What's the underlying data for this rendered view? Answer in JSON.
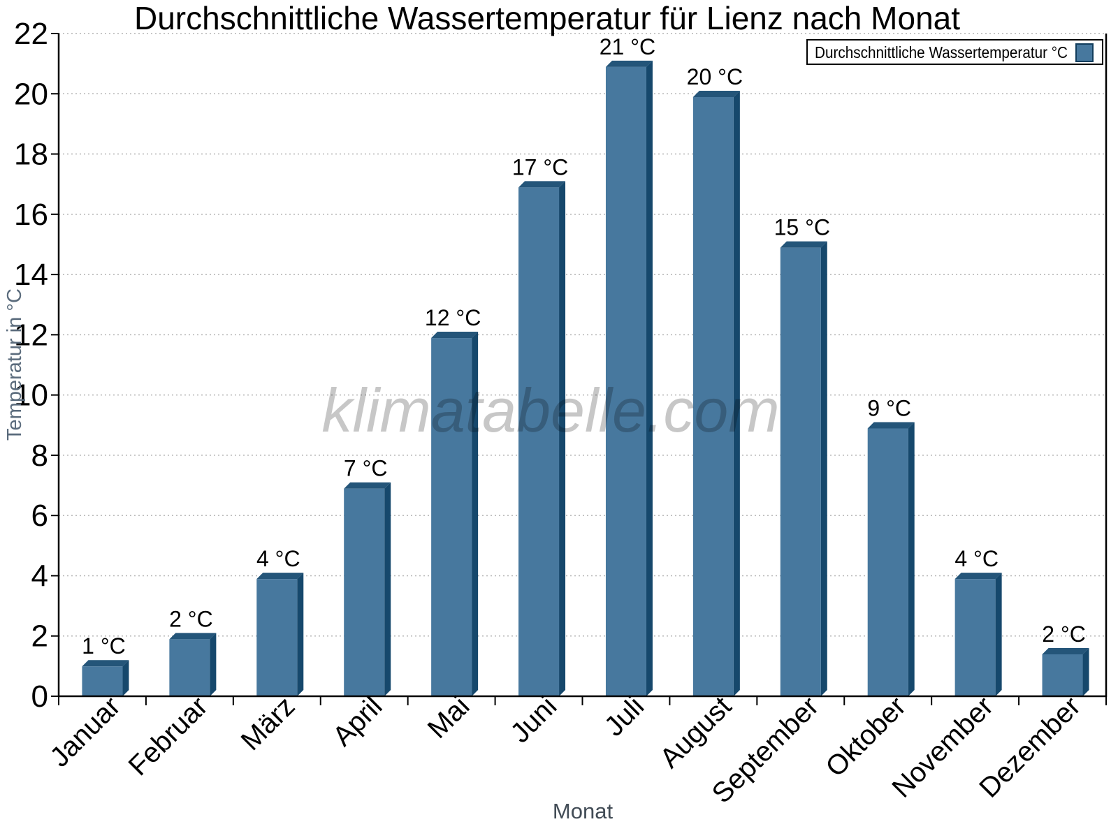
{
  "chart_data": {
    "type": "bar",
    "title": "Durchschnittliche Wassertemperatur für Lienz nach Monat",
    "xlabel": "Monat",
    "ylabel": "Temperatur in °C",
    "watermark": "klimatabelle.com",
    "legend": {
      "label": "Durchschnittliche Wassertemperatur °C",
      "position": "top-right"
    },
    "categories": [
      "Januar",
      "Februar",
      "März",
      "April",
      "Mai",
      "Juni",
      "Juli",
      "August",
      "September",
      "Oktober",
      "November",
      "Dezember"
    ],
    "values": [
      1,
      2,
      4,
      7,
      12,
      17,
      21,
      20,
      15,
      9,
      4,
      2
    ],
    "value_labels": [
      "1 °C",
      "2 °C",
      "4 °C",
      "7 °C",
      "12 °C",
      "17 °C",
      "21 °C",
      "20 °C",
      "15 °C",
      "9 °C",
      "4 °C",
      "2 °C"
    ],
    "drawn_values": [
      1.2,
      2.1,
      4.1,
      7.1,
      12.1,
      17.1,
      21.1,
      20.1,
      15.1,
      9.1,
      4.1,
      1.6
    ],
    "ylim": [
      0,
      22
    ],
    "ytick_step": 2,
    "grid": "horizontal-dotted",
    "legend_position": "top-right",
    "colors": {
      "bar_face": "#47789e",
      "bar_top": "#245579",
      "bar_side": "#16486c",
      "axis": "#000000",
      "grid": "#b3b3b3",
      "title": "#000000",
      "tick_label": "#000000",
      "value_label": "#000000",
      "ylabel": "#5a6b7c",
      "xlabel": "#424c56",
      "watermark": "rgba(0,0,0,0.22)",
      "legend_bg": "#ffffff",
      "legend_border": "#000000",
      "legend_swatch_border": "#123d5c"
    }
  }
}
